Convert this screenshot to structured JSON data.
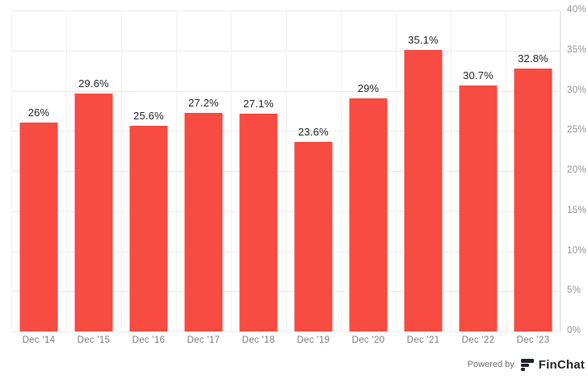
{
  "chart_data": {
    "type": "bar",
    "title": "",
    "xlabel": "",
    "ylabel": "",
    "categories": [
      "Dec '14",
      "Dec '15",
      "Dec '16",
      "Dec '17",
      "Dec '18",
      "Dec '19",
      "Dec '20",
      "Dec '21",
      "Dec '22",
      "Dec '23"
    ],
    "values": [
      26,
      29.6,
      25.6,
      27.2,
      27.1,
      23.6,
      29,
      35.1,
      30.7,
      32.8
    ],
    "value_labels": [
      "26%",
      "29.6%",
      "25.6%",
      "27.2%",
      "27.1%",
      "23.6%",
      "29%",
      "35.1%",
      "30.7%",
      "32.8%"
    ],
    "ylim": [
      0,
      40
    ],
    "y_ticks": [
      0,
      5,
      10,
      15,
      20,
      25,
      30,
      35,
      40
    ],
    "y_tick_labels": [
      "0%",
      "5%",
      "10%",
      "15%",
      "20%",
      "25%",
      "30%",
      "35%",
      "40%"
    ],
    "y_axis_position": "right",
    "grid": "on",
    "legend_position": "none",
    "bar_color": "#f84b41"
  },
  "footer": {
    "powered_by_label": "Powered by",
    "brand": "FinChat"
  }
}
